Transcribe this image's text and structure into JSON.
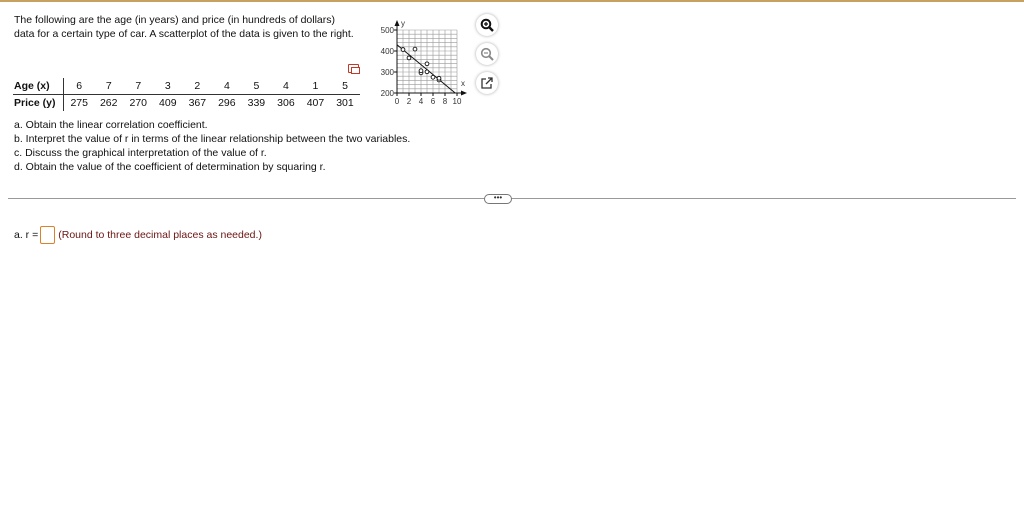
{
  "intro": "The following are the age (in years) and price (in hundreds of dollars) data for a certain type of car. A scatterplot of the data is given to the right.",
  "table": {
    "rows": [
      {
        "header": "Age (x)",
        "values": [
          "6",
          "7",
          "7",
          "3",
          "2",
          "4",
          "5",
          "4",
          "1",
          "5"
        ]
      },
      {
        "header": "Price (y)",
        "values": [
          "275",
          "262",
          "270",
          "409",
          "367",
          "296",
          "339",
          "306",
          "407",
          "301"
        ]
      }
    ]
  },
  "questions": [
    "a. Obtain the linear correlation coefficient.",
    "b. Interpret the value of r in terms of the linear relationship between the two variables.",
    "c. Discuss the graphical interpretation of the value of r.",
    "d. Obtain the value of the coefficient of determination by squaring r."
  ],
  "chart_data": {
    "type": "scatter",
    "xlabel": "x",
    "ylabel": "y",
    "xlim": [
      0,
      10
    ],
    "ylim": [
      200,
      500
    ],
    "xticks": [
      "0",
      "2",
      "4",
      "6",
      "8",
      "10"
    ],
    "yticks": [
      "200",
      "300",
      "400",
      "500"
    ],
    "grid": true,
    "points": [
      [
        6,
        275
      ],
      [
        7,
        262
      ],
      [
        7,
        270
      ],
      [
        3,
        409
      ],
      [
        2,
        367
      ],
      [
        4,
        296
      ],
      [
        5,
        339
      ],
      [
        4,
        306
      ],
      [
        1,
        407
      ],
      [
        5,
        301
      ]
    ],
    "fit_line": [
      [
        0,
        430
      ],
      [
        9.7,
        200
      ]
    ]
  },
  "tools": {
    "zoom_in": "zoom-in-icon",
    "zoom_out": "zoom-out-icon",
    "popout": "external-link-icon"
  },
  "more_label": "•••",
  "answer": {
    "label": "a. r =",
    "hint": "(Round to three decimal places as needed.)"
  }
}
